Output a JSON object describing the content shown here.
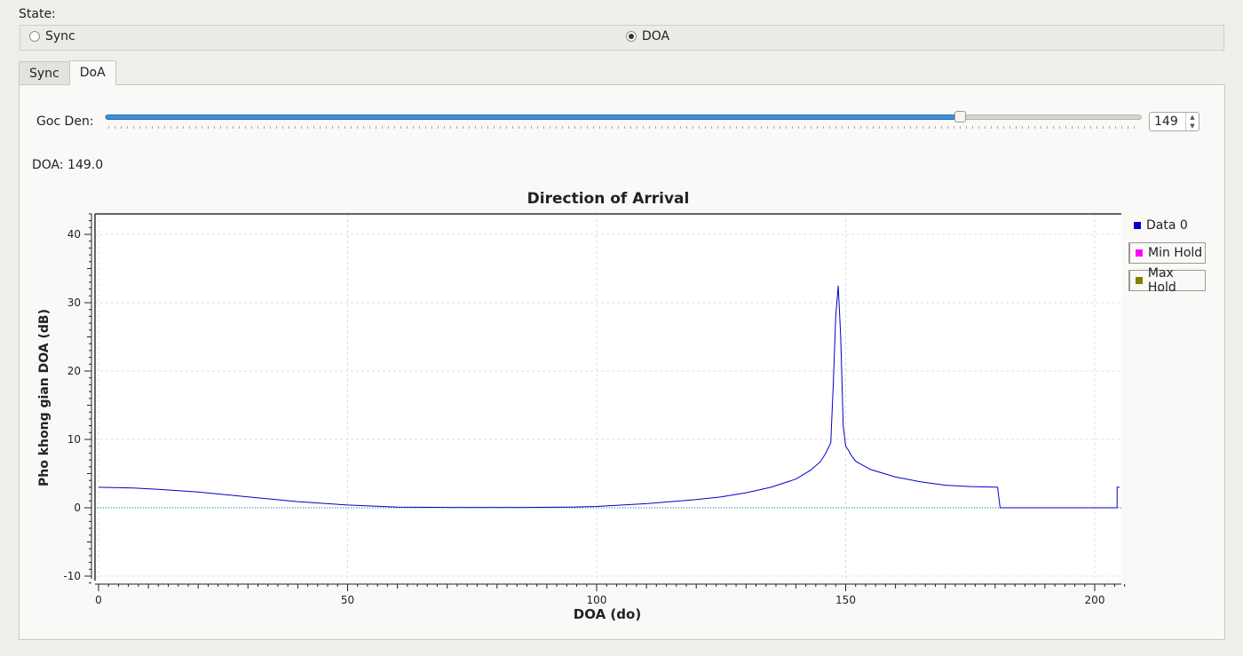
{
  "state": {
    "label": "State:",
    "options": [
      {
        "label": "Sync",
        "selected": false
      },
      {
        "label": "DOA",
        "selected": true
      }
    ]
  },
  "tabs": [
    {
      "label": "Sync",
      "active": false
    },
    {
      "label": "DoA",
      "active": true
    }
  ],
  "slider": {
    "label": "Goc Den:",
    "value": 149,
    "min": 0,
    "max": 180,
    "spin_value": "149"
  },
  "doa_readout": "DOA: 149.0",
  "chart_data": {
    "type": "line",
    "title": "Direction of Arrival",
    "xlabel": "DOA (do)",
    "ylabel": "Pho khong gian DOA (dB)",
    "xlim": [
      -1,
      206
    ],
    "ylim": [
      -11,
      43
    ],
    "xticks": [
      0,
      50,
      100,
      150,
      200
    ],
    "yticks": [
      -10,
      0,
      10,
      20,
      30,
      40
    ],
    "grid": true,
    "legend_position": "right",
    "series": [
      {
        "name": "Data 0",
        "color": "#0000cc",
        "x": [
          0,
          7,
          12,
          20,
          30,
          40,
          50,
          60,
          70,
          78,
          86,
          95,
          100,
          110,
          120,
          125,
          130,
          135,
          140,
          143,
          145,
          146,
          147,
          147.5,
          148,
          148.5,
          149,
          149.5,
          150,
          150.5,
          151,
          152,
          155,
          160,
          165,
          170,
          175,
          180.5,
          181,
          181,
          204.5,
          204.5,
          205
        ],
        "y": [
          3.0,
          2.9,
          2.7,
          2.3,
          1.6,
          0.9,
          0.4,
          0.1,
          0.05,
          0.05,
          0.05,
          0.1,
          0.2,
          0.6,
          1.2,
          1.6,
          2.2,
          3.0,
          4.2,
          5.5,
          6.8,
          8.0,
          9.5,
          18,
          28,
          32.5,
          25,
          12,
          9,
          8.5,
          7.8,
          6.8,
          5.6,
          4.5,
          3.8,
          3.3,
          3.1,
          3.0,
          0,
          0,
          0,
          3.0,
          3.0
        ]
      },
      {
        "name": "Min Hold",
        "color": "#ff00ff"
      },
      {
        "name": "Max Hold",
        "color": "#808000"
      }
    ],
    "reference_line": {
      "y": 0,
      "color": "#008b8b"
    }
  }
}
